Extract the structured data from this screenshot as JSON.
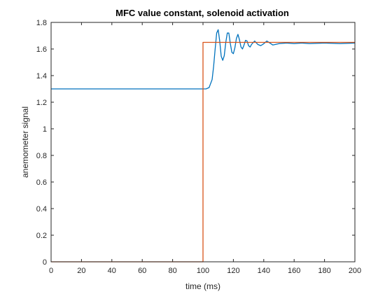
{
  "chart_data": {
    "type": "line",
    "title": "MFC value constant, solenoid activation",
    "xlabel": "time (ms)",
    "ylabel": "anemometer signal",
    "xlim": [
      0,
      200
    ],
    "ylim": [
      0,
      1.8
    ],
    "xticks": [
      0,
      20,
      40,
      60,
      80,
      100,
      120,
      140,
      160,
      180,
      200
    ],
    "yticks": [
      0,
      0.2,
      0.4,
      0.6,
      0.8,
      1,
      1.2,
      1.4,
      1.6,
      1.8
    ],
    "grid": false,
    "box": true,
    "series": [
      {
        "color": "#0072BD",
        "x": [
          0,
          100,
          102,
          104,
          106,
          107,
          108,
          109,
          110,
          111,
          112,
          113,
          114,
          115,
          116,
          117,
          118,
          119,
          120,
          121,
          122,
          123,
          124,
          125,
          126,
          127,
          128,
          129,
          130,
          131,
          132,
          134,
          136,
          138,
          140,
          142,
          144,
          146,
          150,
          155,
          160,
          165,
          170,
          180,
          190,
          200
        ],
        "y": [
          1.3,
          1.3,
          1.3,
          1.31,
          1.37,
          1.47,
          1.6,
          1.72,
          1.745,
          1.66,
          1.545,
          1.515,
          1.55,
          1.65,
          1.72,
          1.72,
          1.64,
          1.575,
          1.565,
          1.61,
          1.68,
          1.71,
          1.67,
          1.615,
          1.6,
          1.63,
          1.665,
          1.66,
          1.625,
          1.615,
          1.635,
          1.66,
          1.635,
          1.625,
          1.64,
          1.66,
          1.645,
          1.63,
          1.64,
          1.645,
          1.64,
          1.645,
          1.64,
          1.645,
          1.64,
          1.645
        ]
      },
      {
        "color": "#D95319",
        "x": [
          0,
          100,
          100,
          200
        ],
        "y": [
          0,
          0,
          1.65,
          1.65
        ]
      }
    ]
  }
}
